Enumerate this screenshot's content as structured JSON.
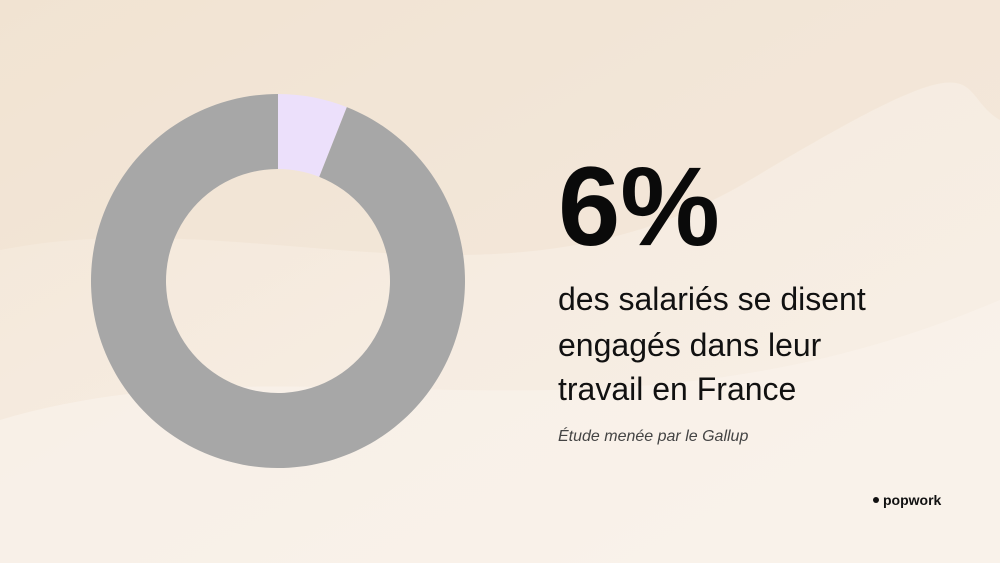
{
  "chart_data": {
    "type": "donut",
    "values": [
      6,
      94
    ],
    "colors": [
      "#ece0fb",
      "#a7a7a7"
    ],
    "value_labels": [
      "6%",
      null
    ],
    "description_lines": [
      "des salariés se disent",
      "engagés dans leur",
      "travail en France"
    ],
    "source": "Étude menée par le Gallup",
    "brand": "popwork"
  }
}
